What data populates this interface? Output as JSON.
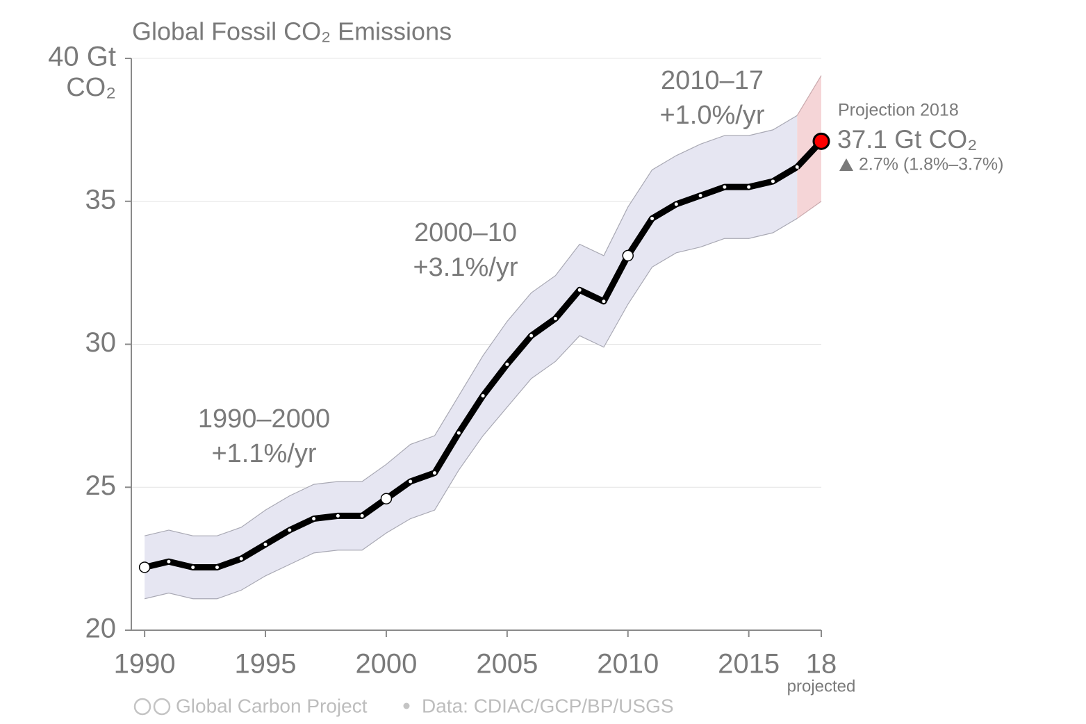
{
  "chart_data": {
    "type": "line",
    "title": "Global Fossil CO₂ Emissions",
    "y_label": "CO₂",
    "x": [
      1990,
      1991,
      1992,
      1993,
      1994,
      1995,
      1996,
      1997,
      1998,
      1999,
      2000,
      2001,
      2002,
      2003,
      2004,
      2005,
      2006,
      2007,
      2008,
      2009,
      2010,
      2011,
      2012,
      2013,
      2014,
      2015,
      2016,
      2017
    ],
    "series": [
      {
        "name": "Global Fossil CO₂ Emissions",
        "color": "#000000",
        "values": [
          22.2,
          22.4,
          22.2,
          22.2,
          22.5,
          23.0,
          23.5,
          23.9,
          24.0,
          24.0,
          24.6,
          25.2,
          25.5,
          26.9,
          28.2,
          29.3,
          30.3,
          30.9,
          31.9,
          31.5,
          33.1,
          34.4,
          34.9,
          35.2,
          35.5,
          35.5,
          35.7,
          36.2
        ]
      }
    ],
    "band": {
      "color": "#e6e6f2",
      "lower": [
        21.1,
        21.3,
        21.1,
        21.1,
        21.4,
        21.9,
        22.3,
        22.7,
        22.8,
        22.8,
        23.4,
        23.9,
        24.2,
        25.6,
        26.8,
        27.8,
        28.8,
        29.4,
        30.3,
        29.9,
        31.4,
        32.7,
        33.2,
        33.4,
        33.7,
        33.7,
        33.9,
        34.4
      ],
      "upper": [
        23.3,
        23.5,
        23.3,
        23.3,
        23.6,
        24.2,
        24.7,
        25.1,
        25.2,
        25.2,
        25.8,
        26.5,
        26.8,
        28.2,
        29.6,
        30.8,
        31.8,
        32.4,
        33.5,
        33.1,
        34.8,
        36.1,
        36.6,
        37.0,
        37.3,
        37.3,
        37.5,
        38.0
      ]
    },
    "projection": {
      "name": "Projection 2018",
      "color": "#ff0000",
      "band_color": "#f5d5d7",
      "x": 2018,
      "value": 37.1,
      "value_label": "37.1 Gt CO₂",
      "change": "2.7% (1.8%–3.7%)",
      "band_x": [
        2017,
        2018
      ],
      "band_lower": [
        34.4,
        35.0
      ],
      "band_upper": [
        38.0,
        39.4
      ]
    },
    "annotations": [
      {
        "period": "1990–2000",
        "rate": "+1.1%/yr"
      },
      {
        "period": "2000–10",
        "rate": "+3.1%/yr"
      },
      {
        "period": "2010–17",
        "rate": "+1.0%/yr"
      }
    ],
    "xlim": [
      1989.45,
      2018
    ],
    "xticks": [
      1990,
      1995,
      2000,
      2005,
      2010,
      2015,
      {
        "value": 2018,
        "label": "18"
      }
    ],
    "xtick_note": "projected",
    "ylim": [
      20,
      40
    ],
    "yticks": [
      20,
      25,
      30,
      35,
      {
        "value": 40,
        "label": "40 Gt"
      }
    ],
    "grid": true,
    "footer": {
      "credit": "Global Carbon Project",
      "source": "Data: CDIAC/GCP/BP/USGS"
    }
  }
}
